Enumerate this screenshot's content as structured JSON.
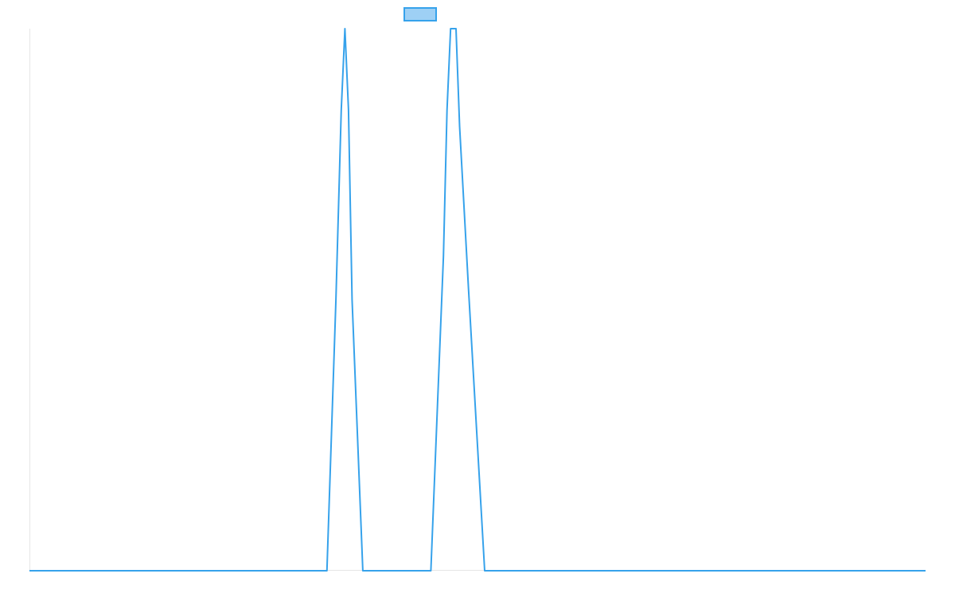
{
  "chart_data": {
    "type": "line",
    "title": "",
    "xlabel": "",
    "ylabel": "",
    "grid": false,
    "legend": "top",
    "xlim": [
      0,
      500
    ],
    "ylim": [
      0,
      1
    ],
    "series": [
      {
        "name": "",
        "color": "#36a2eb",
        "fill": "#9ed0f5",
        "x": [
          0,
          166,
          171,
          174,
          176,
          178,
          180,
          186,
          194,
          224,
          231,
          233,
          235,
          238,
          240,
          245,
          254,
          500
        ],
        "y": [
          0,
          0,
          0.5,
          0.85,
          1.0,
          0.85,
          0.5,
          0,
          0,
          0,
          0.58,
          0.85,
          1.0,
          1.0,
          0.82,
          0.52,
          0,
          0
        ]
      }
    ]
  }
}
